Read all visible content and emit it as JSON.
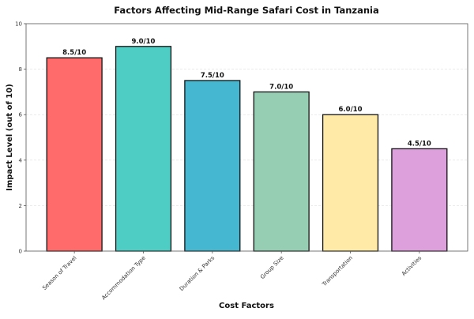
{
  "chart_data": {
    "type": "bar",
    "title": "Factors Affecting Mid-Range Safari Cost in Tanzania",
    "xlabel": "Cost Factors",
    "ylabel": "Impact Level (out of 10)",
    "categories": [
      "Season of Travel",
      "Accommodation Type",
      "Duration & Parks",
      "Group Size",
      "Transportation",
      "Activities"
    ],
    "values": [
      8.5,
      9.0,
      7.5,
      7.0,
      6.0,
      4.5
    ],
    "data_labels": [
      "8.5/10",
      "9.0/10",
      "7.5/10",
      "7.0/10",
      "6.0/10",
      "4.5/10"
    ],
    "colors": [
      "#FF6B6B",
      "#4ECDC4",
      "#45B7D1",
      "#96CEB4",
      "#FFEAA7",
      "#DDA0DD"
    ],
    "ylim": [
      0,
      10
    ],
    "yticks": [
      0,
      2,
      4,
      6,
      8,
      10
    ],
    "grid": "y-axis, dashed, faint",
    "legend": "none"
  }
}
